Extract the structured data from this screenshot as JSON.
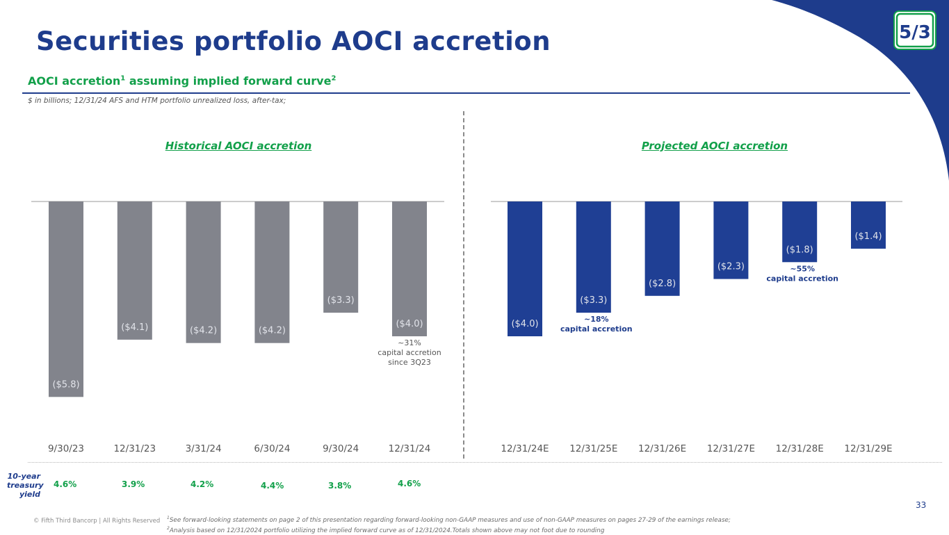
{
  "title": "Securities portfolio AOCI accretion",
  "subtitle": {
    "main": "AOCI accretion",
    "sup1": "1",
    "mid": " assuming implied forward curve",
    "sup2": "2"
  },
  "units_note": "$ in billions; 12/31/24 AFS and HTM portfolio unrealized loss, after-tax;",
  "colors": {
    "navy": "#1e3c8c",
    "gray_bar": "#82848c",
    "green": "#12a04a",
    "blue_bar": "#1f3f94"
  },
  "chart_data": [
    {
      "type": "bar",
      "title": "Historical AOCI accretion",
      "categories": [
        "9/30/23",
        "12/31/23",
        "3/31/24",
        "6/30/24",
        "9/30/24",
        "12/31/24"
      ],
      "values": [
        -5.8,
        -4.1,
        -4.2,
        -4.2,
        -3.3,
        -4.0
      ],
      "labels": [
        "($5.8)",
        "($4.1)",
        "($4.2)",
        "($4.2)",
        "($3.3)",
        "($4.0)"
      ],
      "ylim": [
        -6.0,
        0
      ],
      "annotations": [
        {
          "after_index": 5,
          "lines": [
            "~31%",
            "capital accretion",
            "since 3Q23"
          ]
        }
      ]
    },
    {
      "type": "bar",
      "title": "Projected AOCI accretion",
      "categories": [
        "12/31/24E",
        "12/31/25E",
        "12/31/26E",
        "12/31/27E",
        "12/31/28E",
        "12/31/29E"
      ],
      "values": [
        -4.0,
        -3.3,
        -2.8,
        -2.3,
        -1.8,
        -1.4
      ],
      "labels": [
        "($4.0)",
        "($3.3)",
        "($2.8)",
        "($2.3)",
        "($1.8)",
        "($1.4)"
      ],
      "ylim": [
        -6.0,
        0
      ],
      "annotations": [
        {
          "after_index": 1,
          "lines": [
            "~18%",
            "capital accretion"
          ]
        },
        {
          "after_index": 4,
          "lines": [
            "~55%",
            "capital accretion"
          ]
        }
      ]
    }
  ],
  "treasury": {
    "label_lines": [
      "10-year",
      "treasury",
      "yield"
    ],
    "values": [
      "4.6%",
      "3.9%",
      "4.2%",
      "4.4%",
      "3.8%",
      "4.6%"
    ]
  },
  "footer": {
    "copyright": "© Fifth Third Bancorp | All Rights Reserved",
    "footnote_sup1": "1",
    "footnote_part1": "See forward-looking statements on page 2 of this presentation regarding forward-looking non-GAAP measures and use of non-GAAP measures on pages 27-29 of the earnings release; ",
    "footnote_sup2": "2",
    "footnote_part2": "Analysis based on 12/31/2024 portfolio utilizing the implied forward curve as of 12/31/2024.Totals shown above may not foot due to rounding",
    "page_number": "33"
  }
}
